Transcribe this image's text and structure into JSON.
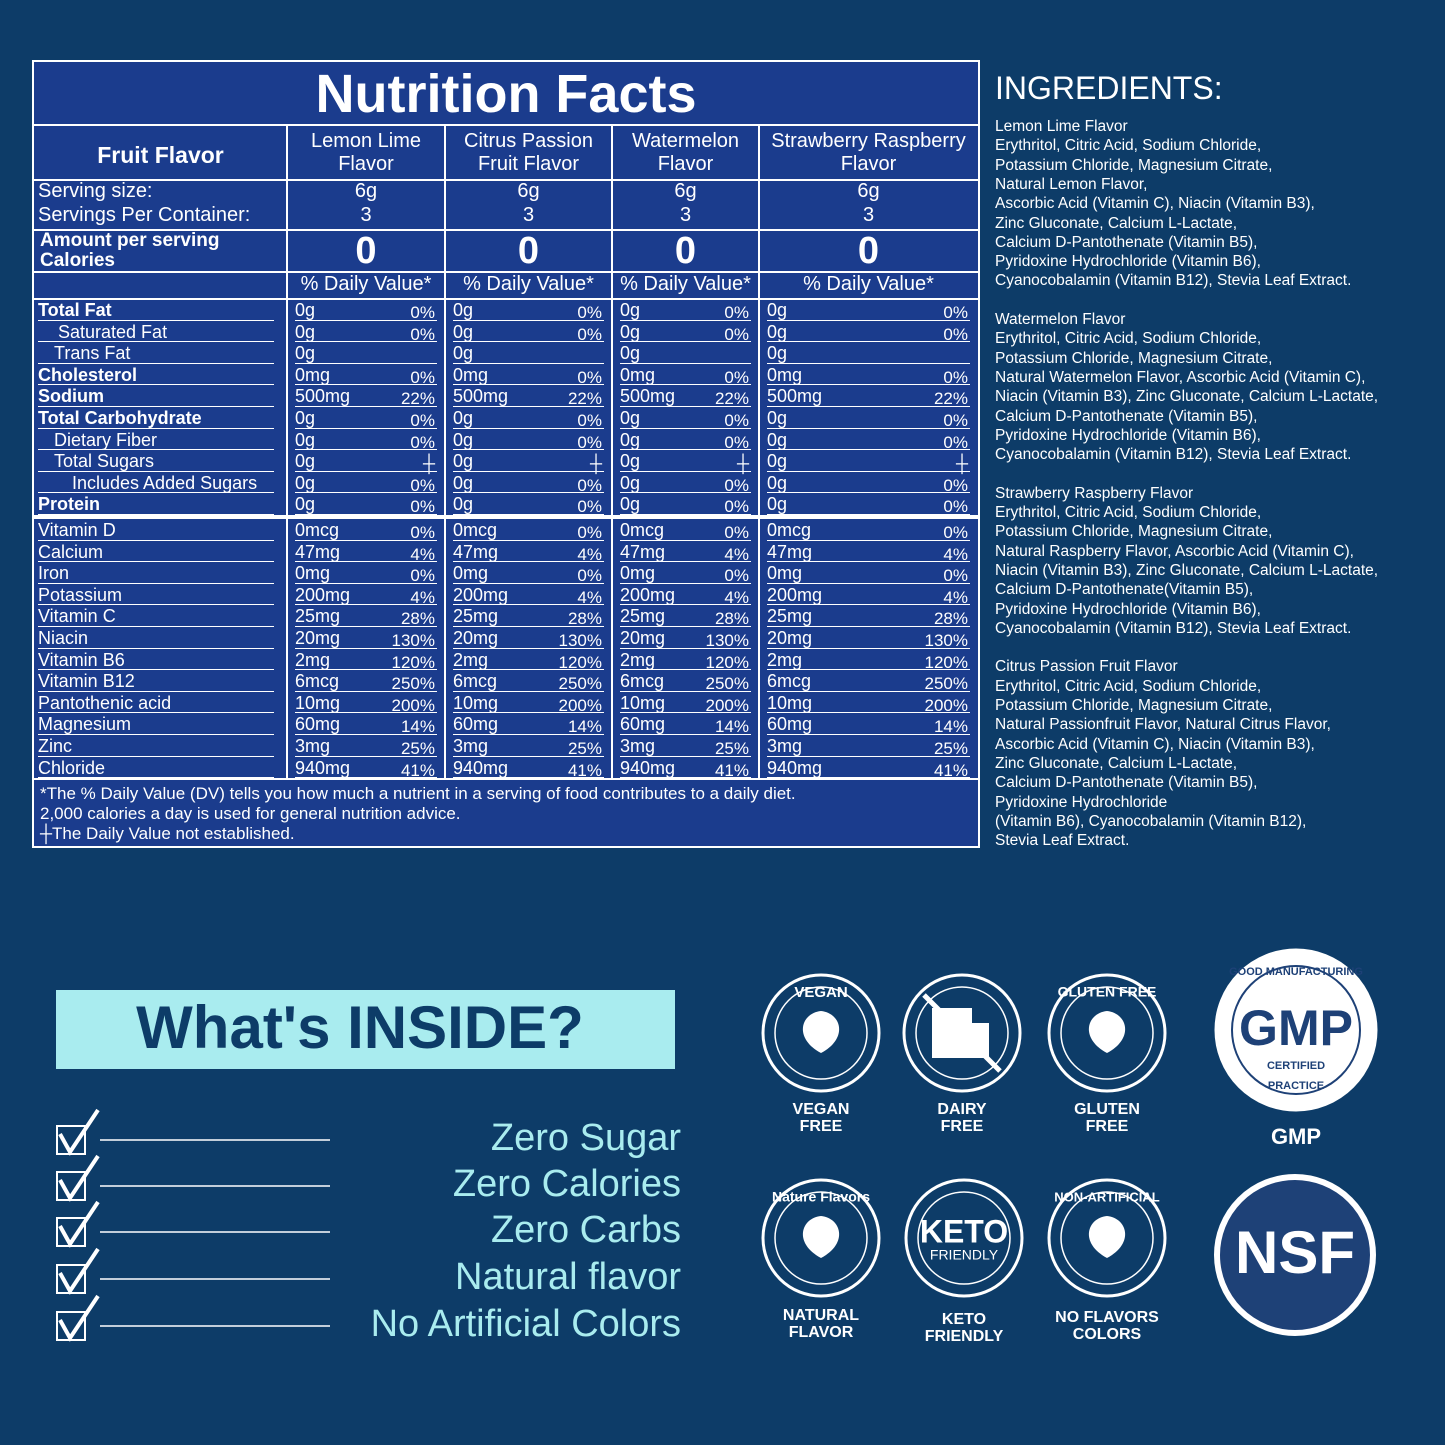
{
  "nutrition": {
    "title": "Nutrition Facts",
    "header": "Fruit Flavor",
    "flavors": [
      "Lemon Lime Flavor",
      "Citrus Passion Fruit Flavor",
      "Watermelon Flavor",
      "Strawberry Raspberry Flavor"
    ],
    "serving_size_label": "Serving size:",
    "servings_label": "Servings Per Container:",
    "serving_size": "6g",
    "servings": "3",
    "amount_label": "Amount per serving",
    "calories_label": "Calories",
    "calories": "0",
    "dv_header": "% Daily Value*",
    "rows": [
      {
        "name": "Total Fat",
        "amount": "0g",
        "dv": "0%",
        "bold": true
      },
      {
        "name": "Saturated Fat",
        "amount": "0g",
        "dv": "0%",
        "indent": 2
      },
      {
        "name": "Trans Fat",
        "amount": "0g",
        "indent": 1
      },
      {
        "name": "Cholesterol",
        "amount": "0mg",
        "dv": "0%",
        "bold": true
      },
      {
        "name": "Sodium",
        "amount": "500mg",
        "dv": "22%",
        "bold": true
      },
      {
        "name": "Total Carbohydrate",
        "amount": "0g",
        "dv": "0%",
        "bold": true
      },
      {
        "name": "Dietary Fiber",
        "amount": "0g",
        "dv": "0%",
        "indent": 1
      },
      {
        "name": "Total Sugars",
        "amount": "0g",
        "dv": "┼",
        "indent": 1
      },
      {
        "name": "Includes Added Sugars",
        "amount": "0g",
        "dv": "0%",
        "indent": 3
      },
      {
        "name": "Protein",
        "amount": "0g",
        "dv": "0%",
        "bold": true
      }
    ],
    "vitamins": [
      {
        "name": "Vitamin D",
        "amount": "0mcg",
        "dv": "0%"
      },
      {
        "name": "Calcium",
        "amount": "47mg",
        "dv": "4%"
      },
      {
        "name": "Iron",
        "amount": "0mg",
        "dv": "0%"
      },
      {
        "name": "Potassium",
        "amount": "200mg",
        "dv": "4%"
      },
      {
        "name": "Vitamin C",
        "amount": "25mg",
        "dv": "28%"
      },
      {
        "name": "Niacin",
        "amount": "20mg",
        "dv": "130%"
      },
      {
        "name": "Vitamin B6",
        "amount": "2mg",
        "dv": "120%"
      },
      {
        "name": "Vitamin B12",
        "amount": "6mcg",
        "dv": "250%"
      },
      {
        "name": "Pantothenic acid",
        "amount": "10mg",
        "dv": "200%"
      },
      {
        "name": "Magnesium",
        "amount": "60mg",
        "dv": "14%"
      },
      {
        "name": "Zinc",
        "amount": "3mg",
        "dv": "25%"
      },
      {
        "name": "Chloride",
        "amount": "940mg",
        "dv": "41%"
      }
    ],
    "footnote": [
      "*The % Daily Value (DV) tells you how much a nutrient in a serving of food contributes to a daily diet.",
      "2,000 calories a day is used for general nutrition advice.",
      "┼The Daily Value not established."
    ]
  },
  "ingredients": {
    "title": "INGREDIENTS:",
    "groups": [
      {
        "name": "Lemon Lime Flavor",
        "lines": [
          "Erythritol, Citric Acid, Sodium Chloride,",
          "Potassium Chloride, Magnesium Citrate,",
          "Natural Lemon Flavor,",
          "Ascorbic Acid (Vitamin C), Niacin (Vitamin B3),",
          "Zinc Gluconate, Calcium L-Lactate,",
          "Calcium D-Pantothenate (Vitamin B5),",
          "Pyridoxine Hydrochloride (Vitamin B6),",
          "Cyanocobalamin (Vitamin B12), Stevia Leaf Extract."
        ]
      },
      {
        "name": "Watermelon Flavor",
        "lines": [
          "Erythritol, Citric Acid, Sodium Chloride,",
          "Potassium Chloride, Magnesium Citrate,",
          "Natural Watermelon Flavor, Ascorbic Acid (Vitamin C),",
          "Niacin (Vitamin B3), Zinc Gluconate, Calcium L-Lactate,",
          "Calcium D-Pantothenate (Vitamin B5),",
          "Pyridoxine Hydrochloride (Vitamin B6),",
          "Cyanocobalamin (Vitamin B12), Stevia Leaf Extract."
        ]
      },
      {
        "name": "Strawberry Raspberry Flavor",
        "lines": [
          "Erythritol, Citric Acid, Sodium Chloride,",
          "Potassium Chloride, Magnesium Citrate,",
          "Natural Raspberry Flavor, Ascorbic Acid (Vitamin C),",
          "Niacin (Vitamin B3), Zinc Gluconate, Calcium L-Lactate,",
          "Calcium D-Pantothenate(Vitamin B5),",
          "Pyridoxine Hydrochloride (Vitamin B6),",
          "Cyanocobalamin (Vitamin B12), Stevia Leaf Extract."
        ]
      },
      {
        "name": "Citrus Passion Fruit Flavor",
        "lines": [
          "Erythritol, Citric Acid, Sodium Chloride,",
          "Potassium Chloride, Magnesium Citrate,",
          "Natural Passionfruit Flavor, Natural Citrus Flavor,",
          "Ascorbic Acid (Vitamin C), Niacin (Vitamin B3),",
          "Zinc Gluconate, Calcium L-Lactate,",
          "Calcium D-Pantothenate (Vitamin B5),",
          "Pyridoxine Hydrochloride",
          "(Vitamin B6), Cyanocobalamin (Vitamin B12),",
          "Stevia Leaf Extract."
        ]
      }
    ]
  },
  "inside": {
    "title": "What's INSIDE?",
    "items": [
      "Zero Sugar",
      "Zero Calories",
      "Zero Carbs",
      "Natural flavor",
      "No Artificial Colors"
    ]
  },
  "badges": [
    {
      "icon": [
        "VEGAN"
      ],
      "label": [
        "VEGAN",
        "FREE"
      ]
    },
    {
      "label": [
        "DAIRY",
        "FREE"
      ]
    },
    {
      "icon": [
        "GLUTEN FREE"
      ],
      "label": [
        "GLUTEN",
        "FREE"
      ]
    },
    {
      "icon": [
        "GOOD MANUFACTURING",
        "GMP",
        "CERTIFIED",
        "PRACTICE"
      ],
      "label": [
        "GMP"
      ]
    },
    {
      "icon": [
        "Nature Flavors"
      ],
      "label": [
        "NATURAL",
        "FLAVOR"
      ]
    },
    {
      "icon": [
        "KETO",
        "FRIENDLY"
      ],
      "label": [
        "KETO",
        "FRIENDLY"
      ]
    },
    {
      "icon": [
        "NON-ARTIFICIAL"
      ],
      "label": [
        "NO FLAVORS",
        "COLORS"
      ]
    },
    {
      "icon": [
        "NSF"
      ]
    }
  ]
}
